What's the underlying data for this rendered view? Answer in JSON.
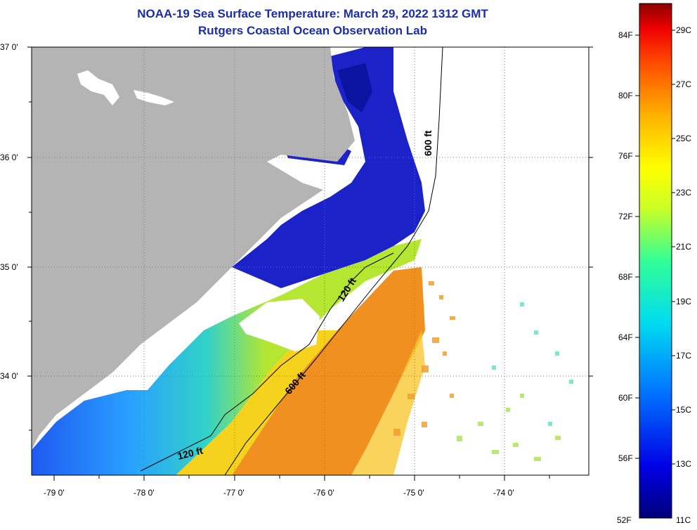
{
  "title_line1": "NOAA-19 Sea Surface Temperature:  March 29, 2022 1312 GMT",
  "title_line2": "Rutgers Coastal Ocean Observation Lab",
  "map": {
    "lat_labels": [
      "37 0'",
      "36 0'",
      "35 0'",
      "34 0'"
    ],
    "lon_labels": [
      "-79 0'",
      "-78 0'",
      "-77 0'",
      "-76 0'",
      "-75 0'",
      "-74 0'"
    ],
    "contour_labels": [
      "600 ft",
      "120 ft",
      "600 ft",
      "120 ft"
    ],
    "colors": {
      "land": "#b4b4b4",
      "cold": "#1428c8",
      "warm": "#f08c14",
      "frame": "#000000"
    }
  },
  "colorbar": {
    "fahrenheit_labels": [
      "84F",
      "80F",
      "76F",
      "72F",
      "68F",
      "64F",
      "60F",
      "56F",
      "52F"
    ],
    "celsius_labels": [
      "29C",
      "27C",
      "25C",
      "23C",
      "21C",
      "19C",
      "17C",
      "15C",
      "13C",
      "11C"
    ],
    "colors": [
      "#00007a",
      "#0000ff",
      "#00b4ff",
      "#00ffc8",
      "#b4ff32",
      "#ffff00",
      "#ffb400",
      "#ff5a00",
      "#ff0000",
      "#a00000"
    ]
  }
}
